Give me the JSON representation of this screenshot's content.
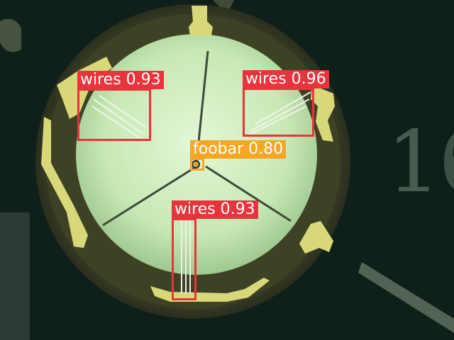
{
  "image": {
    "subject": "Detection overlay on microscope view of circular wire-bonded sample",
    "colors": {
      "background": "#0f1f1a",
      "disc_outer": "#3a3e22",
      "disc_inner": "#c9eab8",
      "gold": "#d8d87a",
      "wires_box": "#e8343c",
      "foobar_box": "#f5a623"
    },
    "background_digits": "1"
  },
  "detections": [
    {
      "label": "wires",
      "score": "0.93"
    },
    {
      "label": "wires",
      "score": "0.96"
    },
    {
      "label": "foobar",
      "score": "0.80"
    },
    {
      "label": "wires",
      "score": "0.93"
    }
  ]
}
